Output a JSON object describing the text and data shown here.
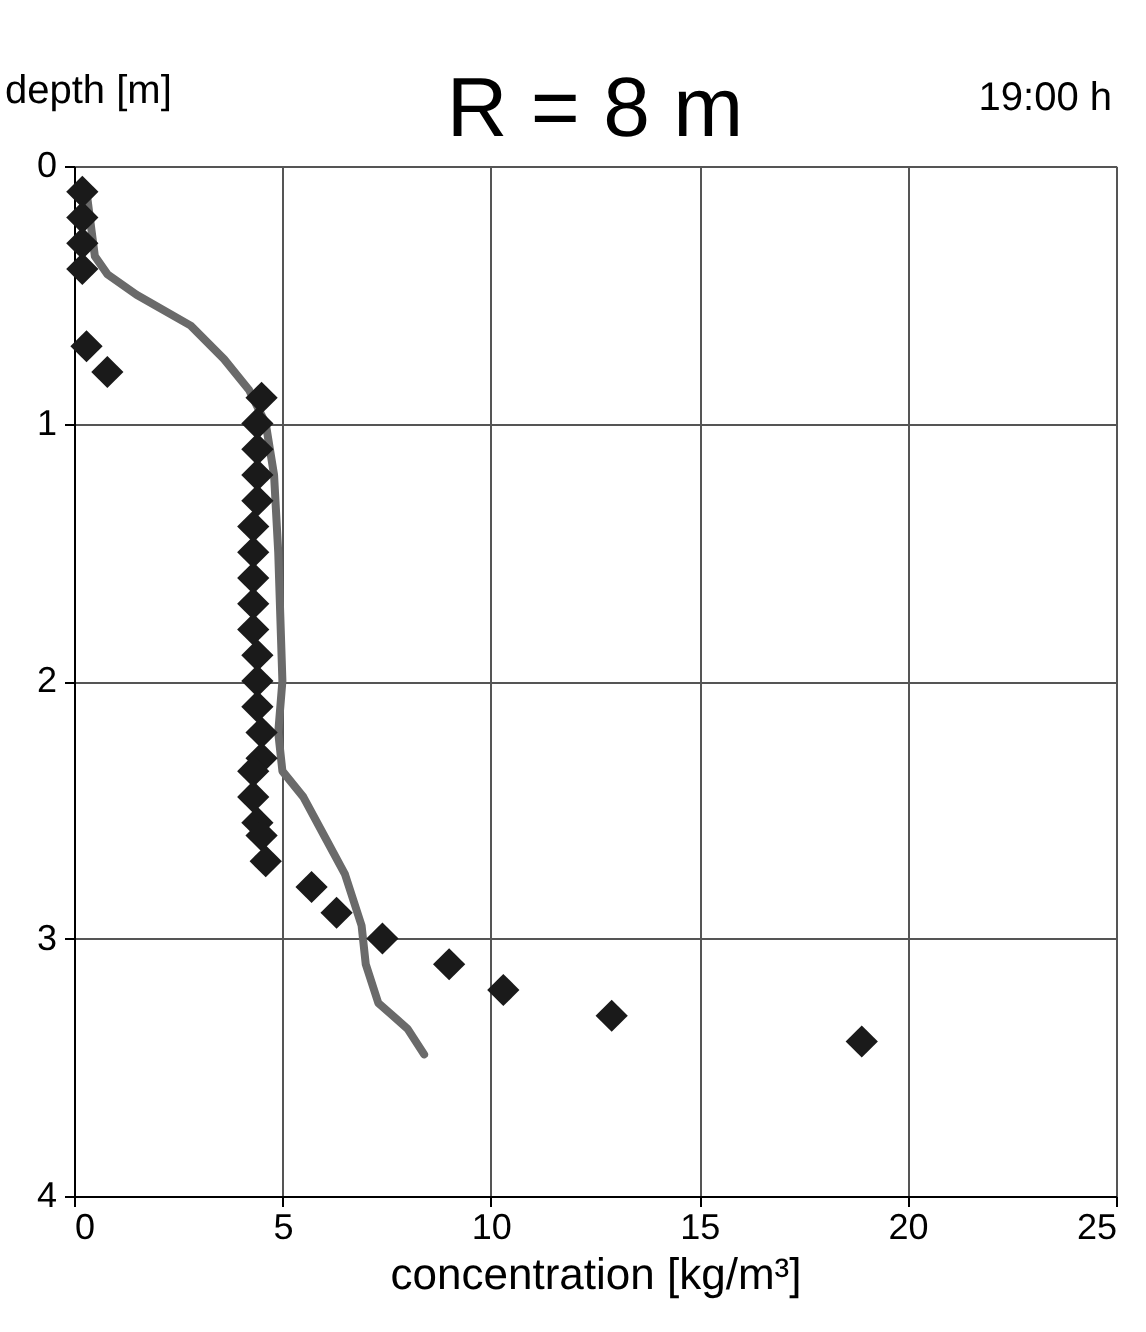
{
  "chart_data": {
    "type": "scatter",
    "title": "R = 8 m",
    "xlabel": "concentration [kg/m³]",
    "ylabel": "depth [m]",
    "annotations": [
      "19:00 h"
    ],
    "xlim": [
      0,
      25
    ],
    "xticks": [
      0,
      5,
      10,
      15,
      20,
      25
    ],
    "ylim": [
      4,
      0
    ],
    "yticks": [
      0,
      1,
      2,
      3,
      4
    ],
    "grid": true,
    "marker": "diamond",
    "series": [
      {
        "type": "line",
        "color": "#6a6a6a",
        "line_style": "solid",
        "marker": "none",
        "x": [
          0.3,
          0.5,
          0.8,
          1.5,
          2.8,
          3.6,
          4.2,
          4.6,
          4.8,
          4.9,
          5.0,
          4.9,
          5.0,
          5.5,
          6.0,
          6.5,
          6.9,
          7.0,
          7.3,
          8.0,
          8.4
        ],
        "values": [
          0.1,
          0.35,
          0.42,
          0.5,
          0.62,
          0.75,
          0.87,
          1.0,
          1.2,
          1.5,
          2.0,
          2.2,
          2.35,
          2.45,
          2.6,
          2.75,
          2.95,
          3.1,
          3.25,
          3.35,
          3.45
        ]
      },
      {
        "color": "#1a1a1a",
        "x": [
          0.2,
          0.2,
          0.2,
          0.2,
          0.3,
          0.8,
          4.5,
          4.4,
          4.4,
          4.4,
          4.4,
          4.3,
          4.3,
          4.3,
          4.3,
          4.3,
          4.4,
          4.4,
          4.4,
          4.5,
          4.5,
          4.3,
          4.3,
          4.4,
          4.5,
          4.6,
          5.7,
          6.3,
          7.4,
          9.0,
          10.3,
          12.9,
          18.9
        ],
        "values": [
          0.1,
          0.2,
          0.3,
          0.4,
          0.7,
          0.8,
          0.9,
          1.0,
          1.1,
          1.2,
          1.3,
          1.4,
          1.5,
          1.6,
          1.7,
          1.8,
          1.9,
          2.0,
          2.1,
          2.2,
          2.3,
          2.35,
          2.45,
          2.55,
          2.6,
          2.7,
          2.8,
          2.9,
          3.0,
          3.1,
          3.2,
          3.3,
          3.4
        ]
      }
    ]
  }
}
